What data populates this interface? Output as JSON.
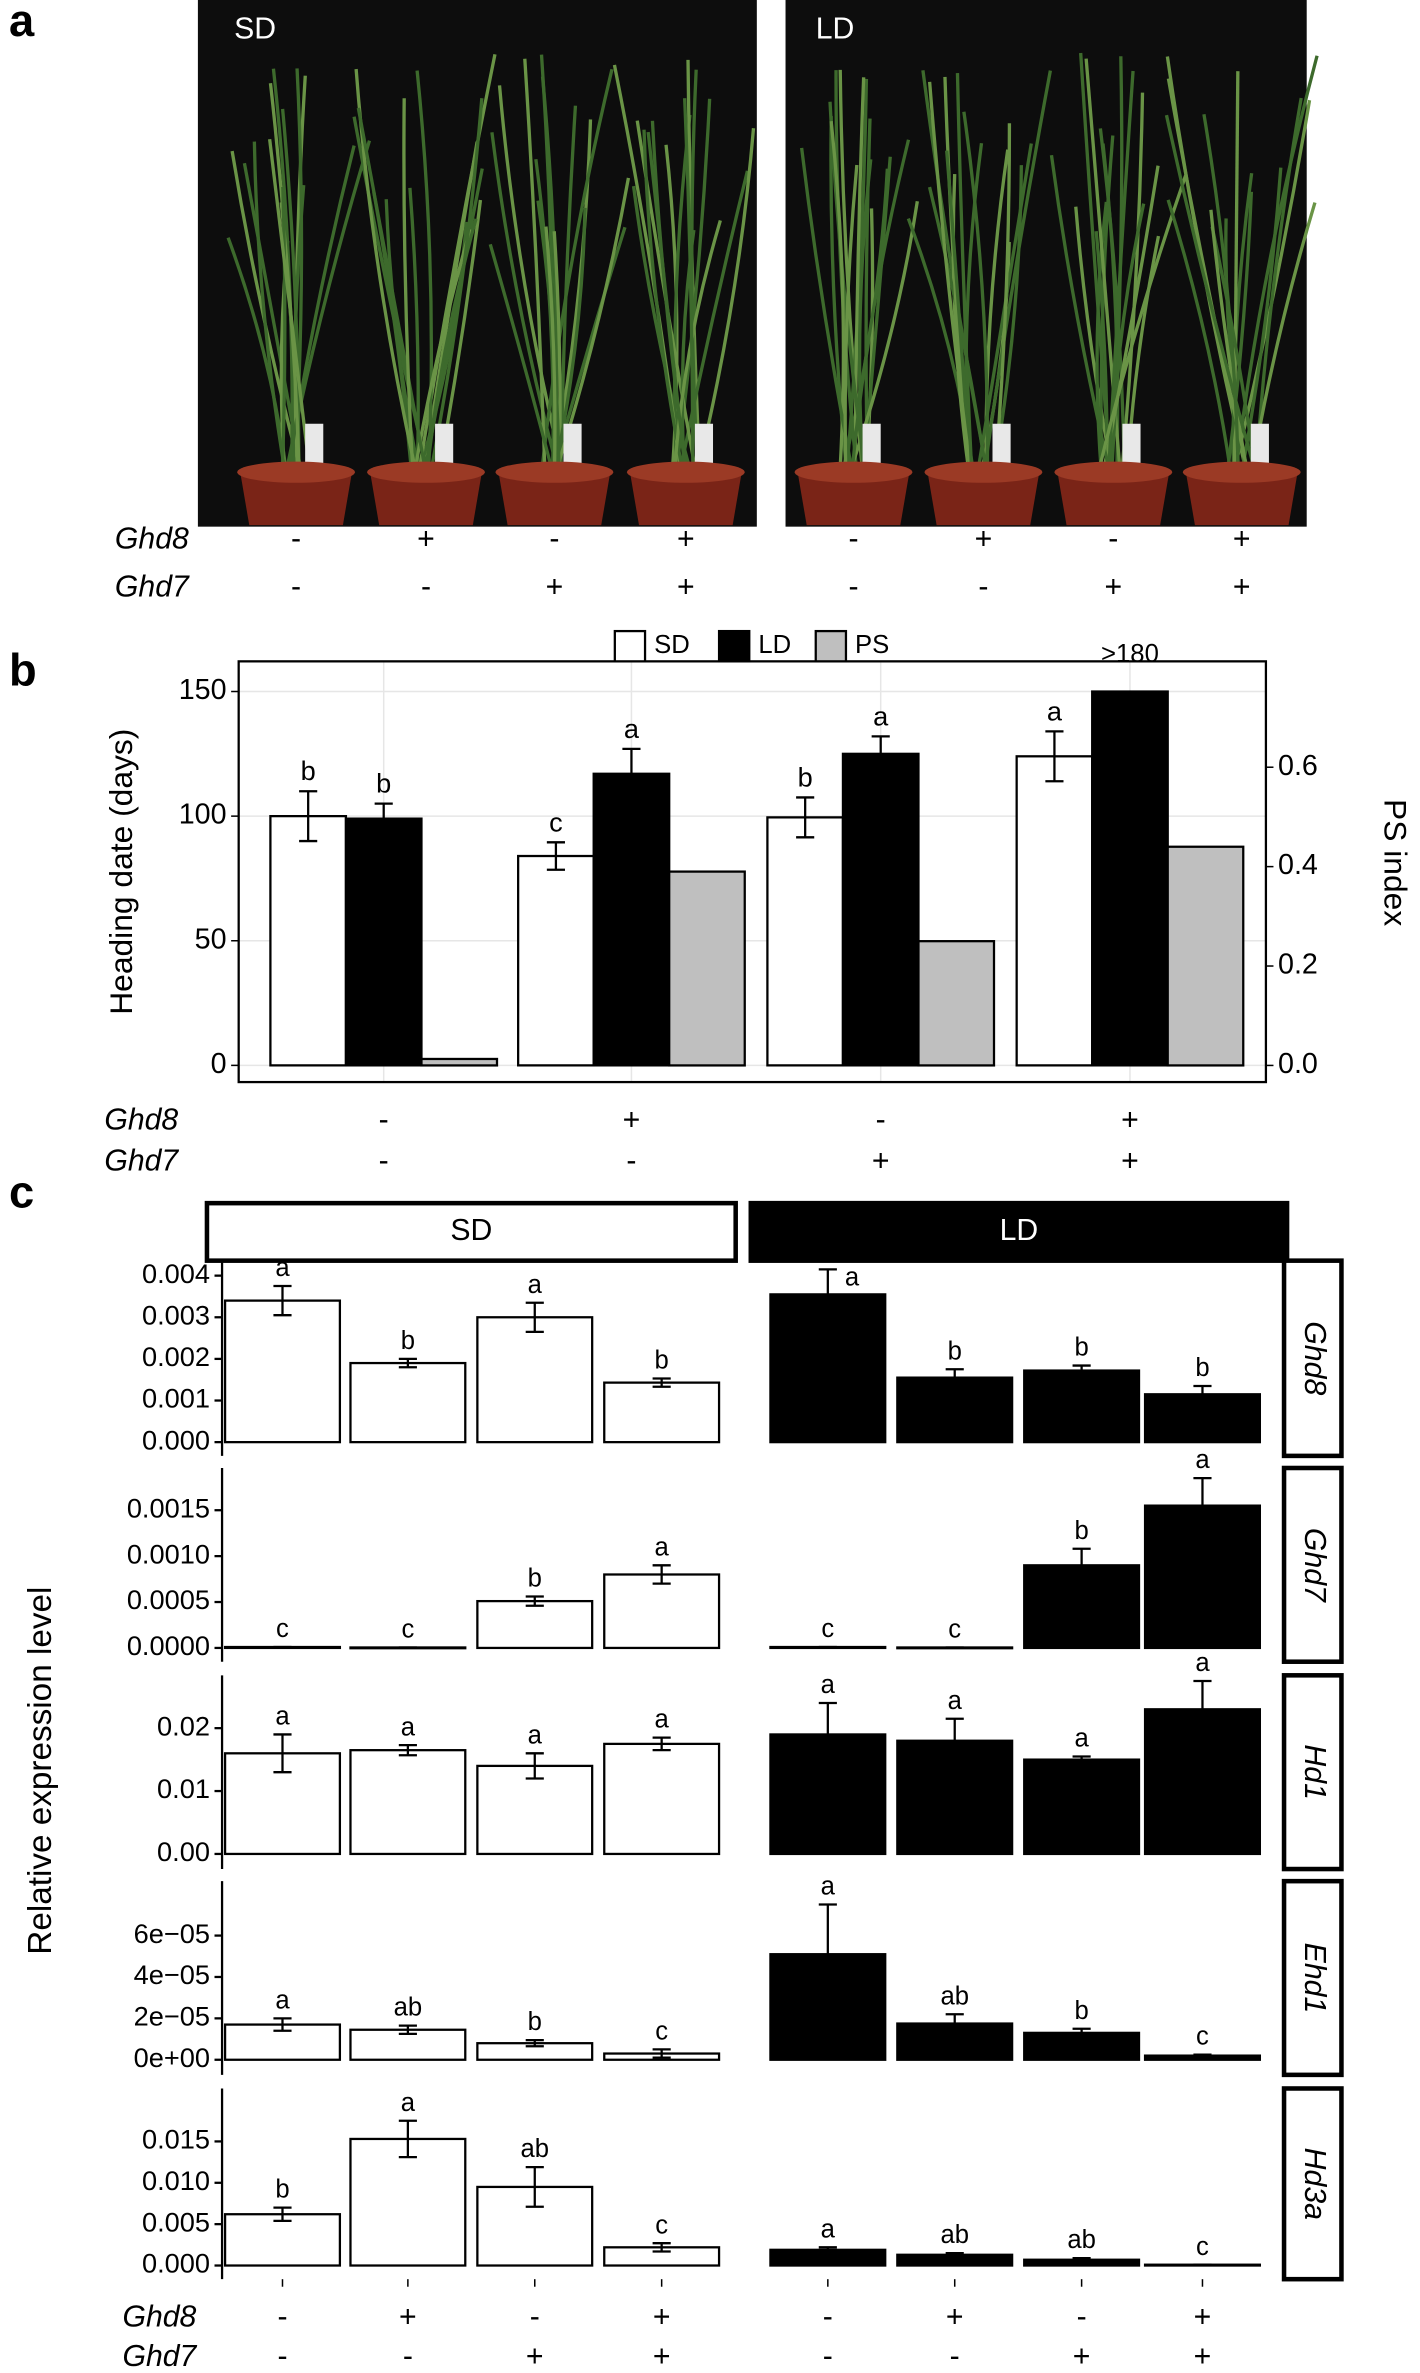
{
  "panel_a": {
    "label": "a",
    "photos": [
      {
        "label": "SD"
      },
      {
        "label": "LD"
      }
    ],
    "genotype_rows": [
      {
        "name": "Ghd8",
        "signs": [
          "-",
          "+",
          "-",
          "+",
          "-",
          "+",
          "-",
          "+"
        ]
      },
      {
        "name": "Ghd7",
        "signs": [
          "-",
          "-",
          "+",
          "+",
          "-",
          "-",
          "+",
          "+"
        ]
      }
    ]
  },
  "chart_data": [
    {
      "type": "bar",
      "panel": "b",
      "ylabel": "Heading date (days)",
      "y2label": "PS index",
      "ylim": [
        -6.7,
        162.1
      ],
      "yticks": [
        0,
        50,
        100,
        150
      ],
      "y2lim": [
        -0.0335,
        0.813
      ],
      "y2ticks": [
        {
          "value": 0,
          "label": "0.0"
        },
        {
          "value": 0.2,
          "label": "0.2"
        },
        {
          "value": 0.4,
          "label": "0.4"
        },
        {
          "value": 0.6,
          "label": "0.6"
        }
      ],
      "grid": true,
      "legend": "top",
      "genotype_rows": [
        {
          "name": "Ghd8",
          "signs": [
            "-",
            "+",
            "-",
            "+"
          ]
        },
        {
          "name": "Ghd7",
          "signs": [
            "-",
            "-",
            "+",
            "+"
          ]
        }
      ],
      "series": [
        {
          "name": "SD",
          "color": "#ffffff",
          "values": [
            100,
            84,
            99.5,
            124
          ],
          "errors": [
            10,
            5.5,
            8,
            10
          ],
          "letters": [
            "b",
            "c",
            "b",
            "a"
          ]
        },
        {
          "name": "LD",
          "color": "#000000",
          "values": [
            99,
            117,
            125,
            150
          ],
          "errors": [
            6,
            10,
            7,
            null
          ],
          "letters": [
            "b",
            "a",
            "a",
            null
          ]
        },
        {
          "name": "PS",
          "color": "#bfbfbf",
          "axis": "y2",
          "values": [
            0.013,
            0.39,
            0.25,
            0.44
          ]
        }
      ],
      "annotations": [
        {
          "text": ">180"
        }
      ]
    },
    {
      "type": "faceted_bar",
      "panel": "c",
      "ylabel": "Relative expression level",
      "columns": [
        {
          "name": "SD",
          "color": "#ffffff"
        },
        {
          "name": "LD",
          "color": "#000000"
        }
      ],
      "genotype_rows": [
        {
          "name": "Ghd8",
          "signs": [
            "-",
            "+",
            "-",
            "+",
            "-",
            "+",
            "-",
            "+"
          ]
        },
        {
          "name": "Ghd7",
          "signs": [
            "-",
            "-",
            "+",
            "+",
            "-",
            "-",
            "+",
            "+"
          ]
        }
      ],
      "rows": [
        {
          "name": "Ghd8",
          "ylim": [
            -0.00033,
            0.00436
          ],
          "yticks": [
            {
              "value": 0,
              "label": "0.000"
            },
            {
              "value": 0.001,
              "label": "0.001"
            },
            {
              "value": 0.002,
              "label": "0.002"
            },
            {
              "value": 0.003,
              "label": "0.003"
            },
            {
              "value": 0.004,
              "label": "0.004"
            }
          ],
          "panels": [
            {
              "values": [
                0.0034,
                0.0019,
                0.003,
                0.00143
              ],
              "errors": [
                0.00035,
                0.0001,
                0.00035,
                0.0001
              ],
              "letters": [
                "a",
                "b",
                "a",
                "b"
              ]
            },
            {
              "values": [
                0.00355,
                0.00155,
                0.00172,
                0.00115
              ],
              "errors": [
                0.0006,
                0.0002,
                0.00012,
                0.0002
              ],
              "letters": [
                "a",
                "b",
                "b",
                "b"
              ]
            }
          ]
        },
        {
          "name": "Ghd7",
          "ylim": [
            -0.00015,
            0.00196
          ],
          "yticks": [
            {
              "value": 0,
              "label": "0.0000"
            },
            {
              "value": 0.0005,
              "label": "0.0005"
            },
            {
              "value": 0.001,
              "label": "0.0010"
            },
            {
              "value": 0.0015,
              "label": "0.0015"
            }
          ],
          "panels": [
            {
              "values": [
                1e-05,
                5e-06,
                0.00051,
                0.0008
              ],
              "errors": [
                0,
                0,
                5e-05,
                0.0001
              ],
              "letters": [
                "c",
                "c",
                "b",
                "a"
              ]
            },
            {
              "values": [
                1e-05,
                5e-06,
                0.0009,
                0.00155
              ],
              "errors": [
                0,
                0,
                0.00018,
                0.0003
              ],
              "letters": [
                "c",
                "c",
                "b",
                "a"
              ]
            }
          ]
        },
        {
          "name": "Hd1",
          "ylim": [
            -0.0024,
            0.0284
          ],
          "yticks": [
            {
              "value": 0,
              "label": "0.00"
            },
            {
              "value": 0.01,
              "label": "0.01"
            },
            {
              "value": 0.02,
              "label": "0.02"
            }
          ],
          "panels": [
            {
              "values": [
                0.016,
                0.0165,
                0.014,
                0.0175
              ],
              "errors": [
                0.003,
                0.0008,
                0.002,
                0.001
              ],
              "letters": [
                "a",
                "a",
                "a",
                "a"
              ]
            },
            {
              "values": [
                0.019,
                0.018,
                0.015,
                0.023
              ],
              "errors": [
                0.005,
                0.0035,
                0.0005,
                0.0045
              ],
              "letters": [
                "a",
                "a",
                "a",
                "a"
              ]
            }
          ]
        },
        {
          "name": "Ehd1",
          "ylim": [
            -7.3e-06,
            8.63e-05
          ],
          "yticks": [
            {
              "value": 0,
              "label": "0e+00"
            },
            {
              "value": 2e-05,
              "label": "2e−05"
            },
            {
              "value": 4e-05,
              "label": "4e−05"
            },
            {
              "value": 6e-05,
              "label": "6e−05"
            }
          ],
          "panels": [
            {
              "values": [
                1.7e-05,
                1.45e-05,
                8e-06,
                3e-06
              ],
              "errors": [
                3e-06,
                2e-06,
                1.5e-06,
                2e-06
              ],
              "letters": [
                "a",
                "ab",
                "b",
                "c"
              ]
            },
            {
              "values": [
                5.1e-05,
                1.75e-05,
                1.3e-05,
                2e-06
              ],
              "errors": [
                2.4e-05,
                4.5e-06,
                2e-06,
                5e-07
              ],
              "letters": [
                "a",
                "ab",
                "b",
                "c"
              ]
            }
          ]
        },
        {
          "name": "Hd3a",
          "ylim": [
            -0.00165,
            0.0214
          ],
          "yticks": [
            {
              "value": 0,
              "label": "0.000"
            },
            {
              "value": 0.005,
              "label": "0.005"
            },
            {
              "value": 0.01,
              "label": "0.010"
            },
            {
              "value": 0.015,
              "label": "0.015"
            }
          ],
          "panels": [
            {
              "values": [
                0.0062,
                0.0153,
                0.0095,
                0.0022
              ],
              "errors": [
                0.0008,
                0.0022,
                0.0024,
                0.0005
              ],
              "letters": [
                "b",
                "a",
                "ab",
                "c"
              ]
            },
            {
              "values": [
                0.0019,
                0.0013,
                0.0007,
                0.0001
              ],
              "errors": [
                0.0003,
                0.0002,
                0.0002,
                0
              ],
              "letters": [
                "a",
                "ab",
                "ab",
                "c"
              ]
            }
          ]
        }
      ]
    }
  ]
}
